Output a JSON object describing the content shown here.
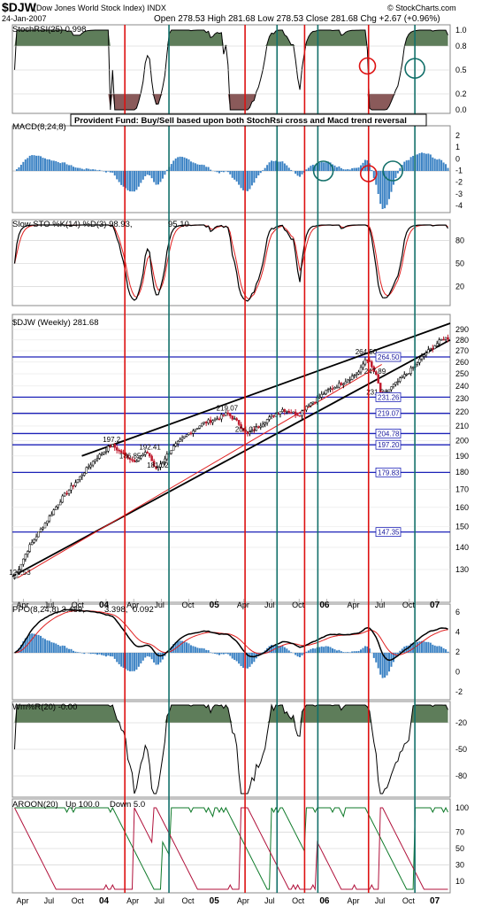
{
  "header": {
    "symbol": "$DJW",
    "name": "(Dow Jones World Stock Index) INDX",
    "date": "24-Jan-2007",
    "ohlc": "Open 278.53  High 281.68  Low 278.53  Close 281.68  Chg +2.67 (+0.96%)",
    "source": "© StockCharts.com"
  },
  "annotation_text": "Provident Fund:  Buy/Sell based upon both StochRsi cross and Macd trend reversal",
  "panels": {
    "stochrsi": {
      "label": "StochRSI(25) 0.998",
      "ticks": [
        "1.0",
        "0.8",
        "0.5",
        "0.2",
        "0.0"
      ]
    },
    "macd": {
      "label": "MACD(8,24,8)",
      "ticks": [
        "2",
        "1",
        "0",
        "-1",
        "-2",
        "-3",
        "-4"
      ]
    },
    "slowsto": {
      "label": "Slow STO %K(14) %D(3) 98.93,",
      "label_d": "95.10",
      "ticks": [
        "80",
        "50",
        "20"
      ]
    },
    "price": {
      "label": "$DJW (Weekly) 281.68",
      "ticks": [
        "290",
        "280",
        "270",
        "260",
        "250",
        "240",
        "230",
        "220",
        "210",
        "200",
        "190",
        "180",
        "170",
        "160",
        "150",
        "140",
        "130"
      ]
    },
    "ppo": {
      "label": "PPO(8,24,8) 3.489,",
      "label_sig": "3.398,",
      "label_hist": "0.092",
      "ticks": [
        "6",
        "4",
        "2",
        "0",
        "-2"
      ]
    },
    "willr": {
      "label": "Wm%R(20) -0.00",
      "ticks": [
        "-20",
        "-50",
        "-80"
      ]
    },
    "aroon": {
      "label": "AROON(20)",
      "label_up": "Up 100.0",
      "label_down": "Down 5.0",
      "ticks": [
        "100",
        "70",
        "50",
        "30",
        "10"
      ]
    }
  },
  "x_axis": {
    "labels": [
      {
        "t": "Apr",
        "bold": false
      },
      {
        "t": "Jul",
        "bold": false
      },
      {
        "t": "Oct",
        "bold": false
      },
      {
        "t": "04",
        "bold": true
      },
      {
        "t": "Apr",
        "bold": false
      },
      {
        "t": "Jul",
        "bold": false
      },
      {
        "t": "Oct",
        "bold": false
      },
      {
        "t": "05",
        "bold": true
      },
      {
        "t": "Apr",
        "bold": false
      },
      {
        "t": "Jul",
        "bold": false
      },
      {
        "t": "Oct",
        "bold": false
      },
      {
        "t": "06",
        "bold": true
      },
      {
        "t": "Apr",
        "bold": false
      },
      {
        "t": "Jul",
        "bold": false
      },
      {
        "t": "Oct",
        "bold": false
      },
      {
        "t": "07",
        "bold": true
      }
    ]
  },
  "signals": {
    "sell": [
      2004.17,
      2005.26,
      2005.8,
      2006.38
    ],
    "buy": [
      2004.57,
      2005.55,
      2005.92,
      2006.8
    ]
  },
  "chart_data": {
    "type": "line",
    "title": "$DJW (Dow Jones World Stock Index)",
    "x_range": [
      2003.15,
      2007.12
    ],
    "series": [
      {
        "name": "$DJW (Weekly)",
        "x": [
          2003.17,
          2003.3,
          2003.45,
          2003.6,
          2003.75,
          2003.9,
          2004.05,
          2004.12,
          2004.25,
          2004.38,
          2004.45,
          2004.6,
          2004.75,
          2004.88,
          2005.0,
          2005.1,
          2005.2,
          2005.28,
          2005.35,
          2005.45,
          2005.6,
          2005.75,
          2005.82,
          2005.9,
          2006.0,
          2006.15,
          2006.3,
          2006.36,
          2006.45,
          2006.5,
          2006.6,
          2006.75,
          2006.9,
          2007.06
        ],
        "y": [
          126.53,
          140,
          152,
          165,
          176,
          188,
          197.2,
          193,
          186.85,
          192.41,
          181.02,
          195,
          205,
          212,
          215,
          219.07,
          212,
          204.07,
          208,
          214,
          222,
          218,
          225,
          229,
          236,
          243,
          252,
          264.5,
          247.89,
          231.26,
          240,
          252,
          268,
          281.68
        ]
      }
    ],
    "price_labels": [
      {
        "text": "126.53",
        "x": 2003.2,
        "y": 126.53
      },
      {
        "text": "197.2",
        "x": 2004.05,
        "y": 197.2
      },
      {
        "text": "186.85",
        "x": 2004.2,
        "y": 186.85
      },
      {
        "text": "192.41",
        "x": 2004.38,
        "y": 192.41
      },
      {
        "text": "181.02",
        "x": 2004.45,
        "y": 181.02
      },
      {
        "text": "219.07",
        "x": 2005.08,
        "y": 219.07
      },
      {
        "text": "204.07",
        "x": 2005.25,
        "y": 204.07
      },
      {
        "text": "264.50",
        "x": 2006.34,
        "y": 264.5
      },
      {
        "text": "247.89",
        "x": 2006.42,
        "y": 247.89
      },
      {
        "text": "231.26",
        "x": 2006.44,
        "y": 231.26
      }
    ],
    "hlines": [
      264.5,
      231.26,
      219.07,
      204.78,
      197.2,
      179.83,
      147.35
    ],
    "hline_labels": [
      {
        "text": "264.50",
        "y": 264.5
      },
      {
        "text": "231.26",
        "y": 231.26
      },
      {
        "text": "219.07",
        "y": 219.07
      },
      {
        "text": "204.78",
        "y": 204.78
      },
      {
        "text": "197.20",
        "y": 197.2
      },
      {
        "text": "179.83",
        "y": 179.83
      },
      {
        "text": "147.35",
        "y": 147.35
      }
    ],
    "trendlines": [
      {
        "x1": 2003.15,
        "y1": 127,
        "x2": 2007.12,
        "y2": 280,
        "color": "#000000"
      },
      {
        "x1": 2003.78,
        "y1": 190,
        "x2": 2007.12,
        "y2": 296,
        "color": "#000000"
      },
      {
        "x1": 2003.2,
        "y1": 126.5,
        "x2": 2006.5,
        "y2": 258,
        "color": "#e02020"
      }
    ],
    "y_range": [
      120,
      296
    ],
    "log_scale": true,
    "grid": true,
    "legend": "top-left"
  },
  "colors": {
    "sell": "#dd1111",
    "buy": "#13706a",
    "fill": "#5e7d5a",
    "hist": "#3b82c4",
    "price_up": "#000000",
    "price_down": "#c01b2e",
    "hline": "#1d22b8",
    "macd_line": "#000000",
    "signal": "#e02020",
    "aroon_up": "#0f7a2a",
    "aroon_down": "#b0103a"
  }
}
